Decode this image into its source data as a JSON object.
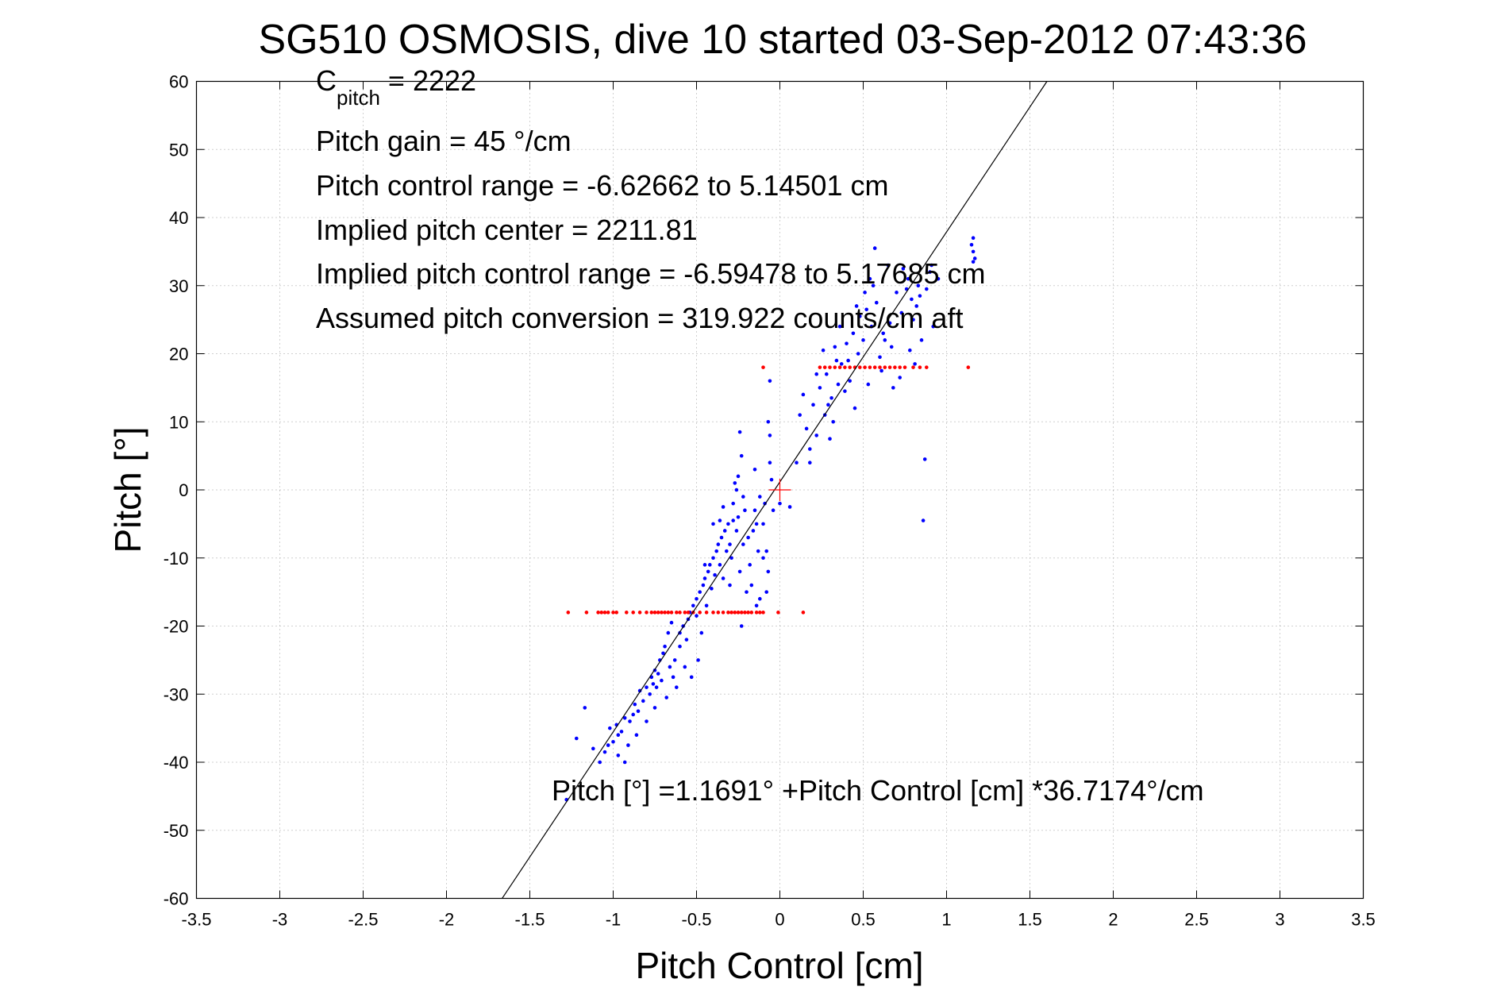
{
  "chart_data": {
    "type": "scatter",
    "title": "SG510 OSMOSIS, dive 10 started 03-Sep-2012 07:43:36",
    "xlabel": "Pitch Control [cm]",
    "ylabel": "Pitch [°]",
    "xlim": [
      -3.5,
      3.5
    ],
    "ylim": [
      -60,
      60
    ],
    "xticks": [
      -3.5,
      -3,
      -2.5,
      -2,
      -1.5,
      -1,
      -0.5,
      0,
      0.5,
      1,
      1.5,
      2,
      2.5,
      3,
      3.5
    ],
    "xtick_labels": [
      "-3.5",
      "-3",
      "-2.5",
      "-2",
      "-1.5",
      "-1",
      "-0.5",
      "0",
      "0.5",
      "1",
      "1.5",
      "2",
      "2.5",
      "3",
      "3.5"
    ],
    "yticks": [
      -60,
      -50,
      -40,
      -30,
      -20,
      -10,
      0,
      10,
      20,
      30,
      40,
      50,
      60
    ],
    "ytick_labels": [
      "-60",
      "-50",
      "-40",
      "-30",
      "-20",
      "-10",
      "0",
      "10",
      "20",
      "30",
      "40",
      "50",
      "60"
    ],
    "grid": true,
    "annotations": {
      "c_pitch_symbol": "C",
      "c_pitch_sub": "pitch",
      "c_pitch_value": " = 2222",
      "pitch_gain": "Pitch gain = 45 °/cm",
      "control_range": "Pitch control range = -6.62662 to 5.14501 cm",
      "implied_center": "Implied pitch center = 2211.81",
      "implied_range": "Implied pitch control range = -6.59478 to 5.17685 cm",
      "conversion": "Assumed pitch conversion = 319.922 counts/cm aft",
      "fit_equation": "Pitch [°] =1.1691° +Pitch Control [cm] *36.7174°/cm"
    },
    "fit_line": {
      "intercept": 1.1691,
      "slope": 36.7174,
      "color": "#000000"
    },
    "center_marker": {
      "x": 0,
      "y": 0,
      "color": "#ff0000"
    },
    "series": [
      {
        "color": "#0000ff",
        "points": [
          [
            -1.28,
            -45.5
          ],
          [
            -1.22,
            -36.5
          ],
          [
            -1.17,
            -32
          ],
          [
            -1.12,
            -38
          ],
          [
            -1.08,
            -40
          ],
          [
            -1.05,
            -38.5
          ],
          [
            -1.03,
            -37.5
          ],
          [
            -1.0,
            -37
          ],
          [
            -1.02,
            -35
          ],
          [
            -0.98,
            -34.5
          ],
          [
            -0.97,
            -36
          ],
          [
            -0.95,
            -35.5
          ],
          [
            -0.93,
            -33.5
          ],
          [
            -0.9,
            -34
          ],
          [
            -0.88,
            -33
          ],
          [
            -0.87,
            -31.5
          ],
          [
            -0.85,
            -32.5
          ],
          [
            -0.84,
            -29.5
          ],
          [
            -0.82,
            -31
          ],
          [
            -0.8,
            -29
          ],
          [
            -0.78,
            -30
          ],
          [
            -0.77,
            -27.5
          ],
          [
            -0.76,
            -28.5
          ],
          [
            -0.75,
            -26.5
          ],
          [
            -0.74,
            -29
          ],
          [
            -0.73,
            -27
          ],
          [
            -0.72,
            -25
          ],
          [
            -0.71,
            -28
          ],
          [
            -0.7,
            -24
          ],
          [
            -0.69,
            -23
          ],
          [
            -0.68,
            -30.5
          ],
          [
            -0.67,
            -21
          ],
          [
            -0.66,
            -26
          ],
          [
            -0.65,
            -19.5
          ],
          [
            -0.64,
            -27.5
          ],
          [
            -0.63,
            -25
          ],
          [
            -0.62,
            -29
          ],
          [
            -0.6,
            -21
          ],
          [
            -0.58,
            -20
          ],
          [
            -0.57,
            -26
          ],
          [
            -0.55,
            -19
          ],
          [
            -0.54,
            -18
          ],
          [
            -0.53,
            -27.5
          ],
          [
            -0.52,
            -17
          ],
          [
            -0.5,
            -16
          ],
          [
            -0.49,
            -25
          ],
          [
            -0.48,
            -15
          ],
          [
            -0.46,
            -14
          ],
          [
            -0.45,
            -13
          ],
          [
            -0.44,
            -17
          ],
          [
            -0.43,
            -12
          ],
          [
            -0.42,
            -11
          ],
          [
            -0.41,
            -14.5
          ],
          [
            -0.4,
            -10
          ],
          [
            -0.39,
            -12.5
          ],
          [
            -0.38,
            -9
          ],
          [
            -0.37,
            -8
          ],
          [
            -0.36,
            -11
          ],
          [
            -0.35,
            -7
          ],
          [
            -0.34,
            -13
          ],
          [
            -0.33,
            -6
          ],
          [
            -0.32,
            -9
          ],
          [
            -0.31,
            -5
          ],
          [
            -0.3,
            -14
          ],
          [
            -0.29,
            -10
          ],
          [
            -0.28,
            -2
          ],
          [
            -0.27,
            1
          ],
          [
            -0.26,
            -6
          ],
          [
            -0.25,
            -4
          ],
          [
            -0.24,
            -12
          ],
          [
            -0.23,
            -20
          ],
          [
            -0.22,
            -8
          ],
          [
            -0.21,
            -3
          ],
          [
            -0.2,
            -15
          ],
          [
            -0.18,
            -11
          ],
          [
            -0.16,
            -6
          ],
          [
            -0.15,
            -3
          ],
          [
            -0.14,
            -17
          ],
          [
            -0.13,
            -9
          ],
          [
            -0.12,
            -1
          ],
          [
            -0.1,
            -5
          ],
          [
            -0.09,
            -2
          ],
          [
            -0.08,
            -9
          ],
          [
            -0.07,
            -12
          ],
          [
            -0.06,
            4
          ],
          [
            -0.05,
            1.5
          ],
          [
            0.0,
            -2
          ],
          [
            0.06,
            -2.5
          ],
          [
            0.1,
            4
          ],
          [
            0.12,
            11
          ],
          [
            0.14,
            14
          ],
          [
            0.16,
            9
          ],
          [
            0.18,
            6
          ],
          [
            0.2,
            12.5
          ],
          [
            0.22,
            8
          ],
          [
            0.24,
            15
          ],
          [
            0.26,
            20.5
          ],
          [
            0.27,
            11
          ],
          [
            0.28,
            17
          ],
          [
            0.3,
            7.5
          ],
          [
            0.31,
            13.5
          ],
          [
            0.32,
            10
          ],
          [
            0.34,
            19
          ],
          [
            0.35,
            15.5
          ],
          [
            0.37,
            18.5
          ],
          [
            0.39,
            14.5
          ],
          [
            0.4,
            21.5
          ],
          [
            0.42,
            16
          ],
          [
            0.44,
            23
          ],
          [
            0.45,
            12
          ],
          [
            0.47,
            20
          ],
          [
            0.48,
            25.5
          ],
          [
            0.5,
            22
          ],
          [
            0.52,
            26.5
          ],
          [
            0.53,
            15.5
          ],
          [
            0.55,
            24
          ],
          [
            0.56,
            30
          ],
          [
            0.57,
            35.5
          ],
          [
            0.58,
            27.5
          ],
          [
            0.6,
            19.5
          ],
          [
            0.61,
            17.5
          ],
          [
            0.63,
            22
          ],
          [
            0.65,
            33
          ],
          [
            0.66,
            24.5
          ],
          [
            0.68,
            15
          ],
          [
            0.7,
            29
          ],
          [
            0.72,
            16.5
          ],
          [
            0.74,
            32.5
          ],
          [
            0.76,
            29.5
          ],
          [
            0.78,
            20.5
          ],
          [
            0.79,
            28
          ],
          [
            0.8,
            25
          ],
          [
            0.82,
            27
          ],
          [
            0.83,
            30
          ],
          [
            0.85,
            22
          ],
          [
            0.86,
            -4.5
          ],
          [
            0.87,
            4.5
          ],
          [
            0.88,
            29.5
          ],
          [
            0.9,
            32
          ],
          [
            0.91,
            33
          ],
          [
            0.95,
            31
          ],
          [
            1.16,
            37
          ],
          [
            1.16,
            35
          ],
          [
            1.17,
            34
          ],
          [
            1.16,
            33.5
          ],
          [
            1.15,
            36
          ],
          [
            -0.97,
            -39
          ],
          [
            -0.93,
            -40
          ],
          [
            -0.91,
            -37.5
          ],
          [
            -0.86,
            -36
          ],
          [
            -0.8,
            -34
          ],
          [
            -0.75,
            -32
          ],
          [
            -0.6,
            -23
          ],
          [
            -0.56,
            -22
          ],
          [
            -0.5,
            -18.5
          ],
          [
            -0.47,
            -21
          ],
          [
            -0.45,
            -11
          ],
          [
            -0.4,
            -5
          ],
          [
            -0.36,
            -4.5
          ],
          [
            -0.34,
            -2.5
          ],
          [
            -0.3,
            -8
          ],
          [
            -0.28,
            -4.5
          ],
          [
            -0.26,
            0
          ],
          [
            -0.25,
            2
          ],
          [
            -0.24,
            8.5
          ],
          [
            -0.23,
            5
          ],
          [
            -0.22,
            -1
          ],
          [
            -0.19,
            -7
          ],
          [
            -0.17,
            -14
          ],
          [
            -0.15,
            3
          ],
          [
            -0.14,
            -5
          ],
          [
            -0.12,
            -16
          ],
          [
            -0.1,
            -10
          ],
          [
            -0.08,
            -15
          ],
          [
            -0.06,
            16
          ],
          [
            -0.07,
            10
          ],
          [
            -0.06,
            8
          ],
          [
            -0.04,
            -3
          ],
          [
            0.18,
            4
          ],
          [
            0.22,
            17
          ],
          [
            0.29,
            12.5
          ],
          [
            0.33,
            21
          ],
          [
            0.36,
            24
          ],
          [
            0.41,
            19
          ],
          [
            0.46,
            27
          ],
          [
            0.51,
            29
          ],
          [
            0.54,
            31
          ],
          [
            0.62,
            23
          ],
          [
            0.67,
            21
          ],
          [
            0.73,
            26
          ],
          [
            0.77,
            31
          ],
          [
            0.81,
            18.5
          ],
          [
            0.84,
            28.5
          ],
          [
            0.92,
            24
          ]
        ]
      },
      {
        "color": "#ff0000",
        "points": [
          [
            -1.27,
            -18
          ],
          [
            -1.16,
            -18
          ],
          [
            -1.09,
            -18
          ],
          [
            -1.07,
            -18
          ],
          [
            -1.05,
            -18
          ],
          [
            -1.03,
            -18
          ],
          [
            -1.0,
            -18
          ],
          [
            -0.98,
            -18
          ],
          [
            -0.92,
            -18
          ],
          [
            -0.88,
            -18
          ],
          [
            -0.84,
            -18
          ],
          [
            -0.8,
            -18
          ],
          [
            -0.77,
            -18
          ],
          [
            -0.75,
            -18
          ],
          [
            -0.73,
            -18
          ],
          [
            -0.71,
            -18
          ],
          [
            -0.69,
            -18
          ],
          [
            -0.67,
            -18
          ],
          [
            -0.65,
            -18
          ],
          [
            -0.62,
            -18
          ],
          [
            -0.6,
            -18
          ],
          [
            -0.57,
            -18
          ],
          [
            -0.55,
            -18
          ],
          [
            -0.52,
            -18
          ],
          [
            -0.48,
            -18
          ],
          [
            -0.44,
            -18
          ],
          [
            -0.4,
            -18
          ],
          [
            -0.37,
            -18
          ],
          [
            -0.34,
            -18
          ],
          [
            -0.31,
            -18
          ],
          [
            -0.29,
            -18
          ],
          [
            -0.27,
            -18
          ],
          [
            -0.25,
            -18
          ],
          [
            -0.23,
            -18
          ],
          [
            -0.21,
            -18
          ],
          [
            -0.19,
            -18
          ],
          [
            -0.17,
            -18
          ],
          [
            -0.14,
            -18
          ],
          [
            -0.12,
            -18
          ],
          [
            -0.1,
            -18
          ],
          [
            -0.01,
            -18
          ],
          [
            0.14,
            -18
          ],
          [
            -0.1,
            18
          ],
          [
            0.24,
            18
          ],
          [
            0.27,
            18
          ],
          [
            0.3,
            18
          ],
          [
            0.33,
            18
          ],
          [
            0.36,
            18
          ],
          [
            0.39,
            18
          ],
          [
            0.42,
            18
          ],
          [
            0.45,
            18
          ],
          [
            0.48,
            18
          ],
          [
            0.51,
            18
          ],
          [
            0.54,
            18
          ],
          [
            0.57,
            18
          ],
          [
            0.6,
            18
          ],
          [
            0.63,
            18
          ],
          [
            0.66,
            18
          ],
          [
            0.69,
            18
          ],
          [
            0.72,
            18
          ],
          [
            0.75,
            18
          ],
          [
            0.8,
            18
          ],
          [
            0.84,
            18
          ],
          [
            0.88,
            18
          ],
          [
            1.13,
            18
          ]
        ]
      }
    ]
  }
}
